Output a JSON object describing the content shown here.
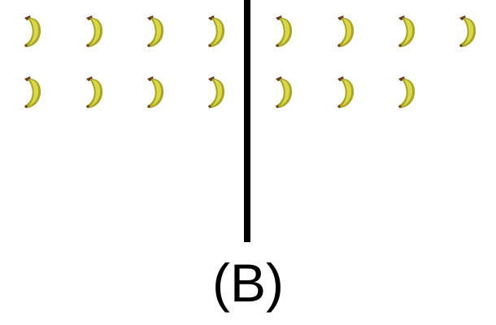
{
  "caption": "(B)",
  "groups": [
    {
      "name": "left-group",
      "count": 8
    },
    {
      "name": "right-group",
      "count": 7
    }
  ],
  "object": "banana",
  "colors": {
    "banana_light": "#d9d84a",
    "banana_dark": "#a9a523",
    "stem": "#6b3b1e",
    "divider": "#000000"
  }
}
